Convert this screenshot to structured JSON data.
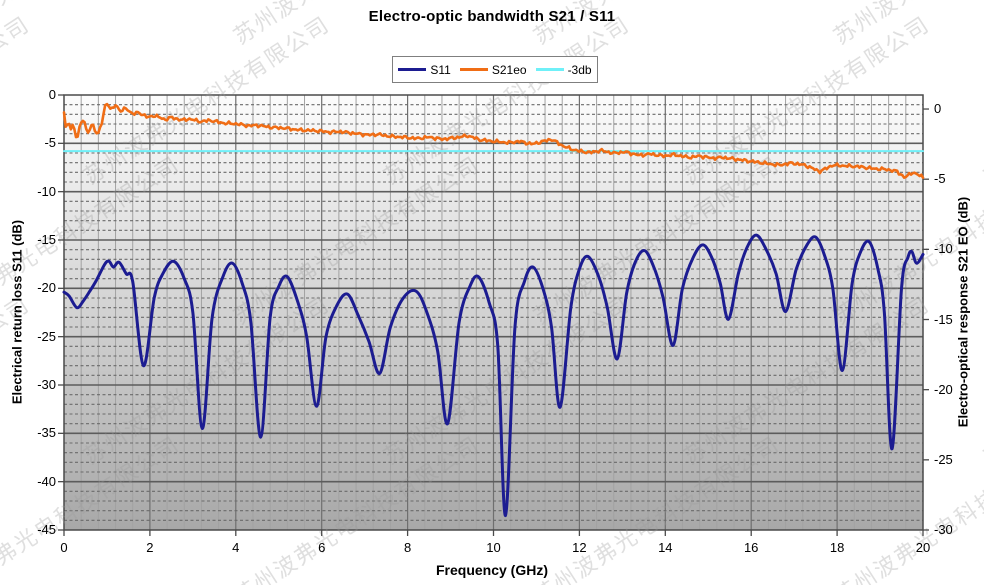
{
  "title": "Electro-optic bandwidth S21 / S11",
  "watermark": {
    "text": "苏州波弗光电科技有限公司",
    "color": "#9a9a9a",
    "opacity": 0.32
  },
  "legend": {
    "items": [
      {
        "label": "S11",
        "color": "#1c1c91"
      },
      {
        "label": "S21eo",
        "color": "#f06d15"
      },
      {
        "label": "-3db",
        "color": "#6ff0f8"
      }
    ]
  },
  "axes": {
    "x_label": "Frequency (GHz)",
    "y_left_label": "Electrical return loss S11 (dB)",
    "y_right_label": "Electro-optical response S21 EO (dB)",
    "x_ticks": [
      0,
      2,
      4,
      6,
      8,
      10,
      12,
      14,
      16,
      18,
      20
    ],
    "y_left_ticks": [
      0,
      -5,
      -10,
      -15,
      -20,
      -25,
      -30,
      -35,
      -40,
      -45
    ],
    "y_right_ticks": [
      0,
      -5,
      -10,
      -15,
      -20,
      -25,
      -30
    ]
  },
  "chart_data": {
    "type": "line",
    "title": "Electro-optic bandwidth S21 / S11",
    "xlabel": "Frequency (GHz)",
    "ylabel_left": "Electrical return loss S11 (dB)",
    "ylabel_right": "Electro-optical response S21 EO (dB)",
    "grid": true,
    "legend_position": "top-center",
    "x_range": [
      0,
      20
    ],
    "x_major": 2,
    "x_minor": 0.4,
    "left_axis": {
      "max": 0,
      "min": -45,
      "major": 5,
      "minor": 1
    },
    "right_axis": {
      "max": 1,
      "min": -30,
      "major": 5
    },
    "plot_bg_gradient": [
      "#fcfcfc",
      "#a8a8a8"
    ],
    "series": [
      {
        "name": "S11",
        "axis": "left",
        "color": "#1c1c91",
        "width": 3,
        "style": "smooth",
        "points": [
          [
            0,
            -20.4
          ],
          [
            0.12,
            -20.8
          ],
          [
            0.3,
            -22.0
          ],
          [
            0.45,
            -21.3
          ],
          [
            0.6,
            -20.3
          ],
          [
            0.75,
            -19.2
          ],
          [
            0.95,
            -17.5
          ],
          [
            1.05,
            -17.2
          ],
          [
            1.15,
            -17.8
          ],
          [
            1.28,
            -17.3
          ],
          [
            1.45,
            -18.5
          ],
          [
            1.6,
            -19.3
          ],
          [
            1.85,
            -28.0
          ],
          [
            2.1,
            -21.0
          ],
          [
            2.3,
            -18.5
          ],
          [
            2.55,
            -17.2
          ],
          [
            2.8,
            -19.0
          ],
          [
            3.0,
            -22.5
          ],
          [
            3.22,
            -34.5
          ],
          [
            3.45,
            -23.0
          ],
          [
            3.7,
            -18.8
          ],
          [
            3.92,
            -17.4
          ],
          [
            4.15,
            -19.5
          ],
          [
            4.35,
            -23.5
          ],
          [
            4.58,
            -35.4
          ],
          [
            4.8,
            -23.0
          ],
          [
            5.0,
            -19.8
          ],
          [
            5.2,
            -18.8
          ],
          [
            5.45,
            -21.5
          ],
          [
            5.65,
            -25.0
          ],
          [
            5.88,
            -32.2
          ],
          [
            6.1,
            -25.0
          ],
          [
            6.35,
            -21.8
          ],
          [
            6.6,
            -20.6
          ],
          [
            6.85,
            -22.8
          ],
          [
            7.1,
            -25.5
          ],
          [
            7.35,
            -28.8
          ],
          [
            7.6,
            -24.0
          ],
          [
            7.9,
            -21.0
          ],
          [
            8.2,
            -20.3
          ],
          [
            8.45,
            -22.5
          ],
          [
            8.7,
            -26.5
          ],
          [
            8.93,
            -34.0
          ],
          [
            9.2,
            -23.5
          ],
          [
            9.45,
            -19.8
          ],
          [
            9.65,
            -18.8
          ],
          [
            9.9,
            -21.5
          ],
          [
            10.1,
            -26.0
          ],
          [
            10.28,
            -43.5
          ],
          [
            10.5,
            -24.0
          ],
          [
            10.72,
            -19.3
          ],
          [
            10.92,
            -17.8
          ],
          [
            11.15,
            -20.0
          ],
          [
            11.35,
            -24.0
          ],
          [
            11.55,
            -32.3
          ],
          [
            11.8,
            -22.0
          ],
          [
            12.0,
            -18.0
          ],
          [
            12.2,
            -16.7
          ],
          [
            12.45,
            -18.8
          ],
          [
            12.65,
            -22.0
          ],
          [
            12.88,
            -27.3
          ],
          [
            13.1,
            -20.5
          ],
          [
            13.3,
            -17.3
          ],
          [
            13.52,
            -16.1
          ],
          [
            13.75,
            -18.0
          ],
          [
            13.95,
            -21.0
          ],
          [
            14.18,
            -25.9
          ],
          [
            14.4,
            -20.0
          ],
          [
            14.65,
            -16.8
          ],
          [
            14.88,
            -15.5
          ],
          [
            15.1,
            -17.0
          ],
          [
            15.28,
            -19.5
          ],
          [
            15.47,
            -23.2
          ],
          [
            15.7,
            -18.5
          ],
          [
            15.9,
            -15.8
          ],
          [
            16.12,
            -14.5
          ],
          [
            16.35,
            -16.0
          ],
          [
            16.58,
            -18.5
          ],
          [
            16.8,
            -22.4
          ],
          [
            17.05,
            -18.0
          ],
          [
            17.3,
            -15.5
          ],
          [
            17.5,
            -14.7
          ],
          [
            17.7,
            -16.5
          ],
          [
            17.9,
            -20.0
          ],
          [
            18.12,
            -28.5
          ],
          [
            18.35,
            -19.5
          ],
          [
            18.55,
            -16.2
          ],
          [
            18.75,
            -15.2
          ],
          [
            18.95,
            -18.0
          ],
          [
            19.1,
            -22.5
          ],
          [
            19.28,
            -36.6
          ],
          [
            19.5,
            -20.0
          ],
          [
            19.65,
            -16.8
          ],
          [
            19.74,
            -16.2
          ],
          [
            19.85,
            -17.4
          ],
          [
            20,
            -16.5
          ]
        ]
      },
      {
        "name": "S21eo",
        "axis": "right",
        "color": "#f06d15",
        "width": 2.6,
        "style": "noisy",
        "noise_amp": 0.12,
        "points": [
          [
            0,
            -0.3
          ],
          [
            0.05,
            -1.6
          ],
          [
            0.1,
            -0.8
          ],
          [
            0.17,
            -1.5
          ],
          [
            0.22,
            -1.0
          ],
          [
            0.3,
            -2.35
          ],
          [
            0.38,
            -1.0
          ],
          [
            0.45,
            -0.7
          ],
          [
            0.55,
            -1.75
          ],
          [
            0.67,
            -1.05
          ],
          [
            0.78,
            -1.9
          ],
          [
            0.88,
            -1.0
          ],
          [
            0.98,
            0.55
          ],
          [
            1.1,
            -0.1
          ],
          [
            1.2,
            0.3
          ],
          [
            1.32,
            -0.15
          ],
          [
            1.45,
            0.05
          ],
          [
            1.6,
            -0.35
          ],
          [
            1.75,
            -0.25
          ],
          [
            1.95,
            -0.6
          ],
          [
            2.1,
            -0.45
          ],
          [
            2.35,
            -0.75
          ],
          [
            2.5,
            -0.6
          ],
          [
            2.75,
            -0.8
          ],
          [
            2.9,
            -0.7
          ],
          [
            3.2,
            -0.9
          ],
          [
            3.4,
            -0.8
          ],
          [
            3.7,
            -1.0
          ],
          [
            4.0,
            -1.05
          ],
          [
            4.3,
            -1.2
          ],
          [
            4.5,
            -1.15
          ],
          [
            4.8,
            -1.3
          ],
          [
            5.1,
            -1.35
          ],
          [
            5.5,
            -1.5
          ],
          [
            5.9,
            -1.55
          ],
          [
            6.2,
            -1.65
          ],
          [
            6.4,
            -1.6
          ],
          [
            6.8,
            -1.75
          ],
          [
            7.1,
            -1.85
          ],
          [
            7.3,
            -1.8
          ],
          [
            7.6,
            -1.95
          ],
          [
            7.9,
            -2.0
          ],
          [
            8.2,
            -2.1
          ],
          [
            8.5,
            -2.0
          ],
          [
            8.8,
            -2.15
          ],
          [
            9.1,
            -2.05
          ],
          [
            9.4,
            -1.9
          ],
          [
            9.7,
            -2.2
          ],
          [
            10.0,
            -2.3
          ],
          [
            10.35,
            -2.4
          ],
          [
            10.6,
            -2.3
          ],
          [
            10.9,
            -2.5
          ],
          [
            11.1,
            -2.35
          ],
          [
            11.35,
            -2.15
          ],
          [
            11.6,
            -2.6
          ],
          [
            11.8,
            -2.85
          ],
          [
            12.0,
            -3.0
          ],
          [
            12.25,
            -3.1
          ],
          [
            12.5,
            -2.95
          ],
          [
            12.8,
            -3.15
          ],
          [
            13.05,
            -3.05
          ],
          [
            13.4,
            -3.3
          ],
          [
            13.65,
            -3.2
          ],
          [
            13.95,
            -3.35
          ],
          [
            14.2,
            -3.25
          ],
          [
            14.55,
            -3.45
          ],
          [
            14.8,
            -3.35
          ],
          [
            15.1,
            -3.5
          ],
          [
            15.35,
            -3.45
          ],
          [
            15.7,
            -3.6
          ],
          [
            16.05,
            -3.75
          ],
          [
            16.4,
            -3.9
          ],
          [
            16.65,
            -4.0
          ],
          [
            16.95,
            -3.85
          ],
          [
            17.25,
            -4.0
          ],
          [
            17.6,
            -4.45
          ],
          [
            17.9,
            -4.0
          ],
          [
            18.2,
            -4.05
          ],
          [
            18.5,
            -4.1
          ],
          [
            18.85,
            -4.25
          ],
          [
            19.15,
            -4.3
          ],
          [
            19.4,
            -4.45
          ],
          [
            19.58,
            -4.9
          ],
          [
            19.75,
            -4.5
          ],
          [
            20,
            -4.85
          ]
        ]
      },
      {
        "name": "-3db",
        "axis": "right",
        "color": "#6ff0f8",
        "width": 2,
        "style": "straight",
        "points": [
          [
            0,
            -3
          ],
          [
            20,
            -3
          ]
        ]
      }
    ]
  }
}
